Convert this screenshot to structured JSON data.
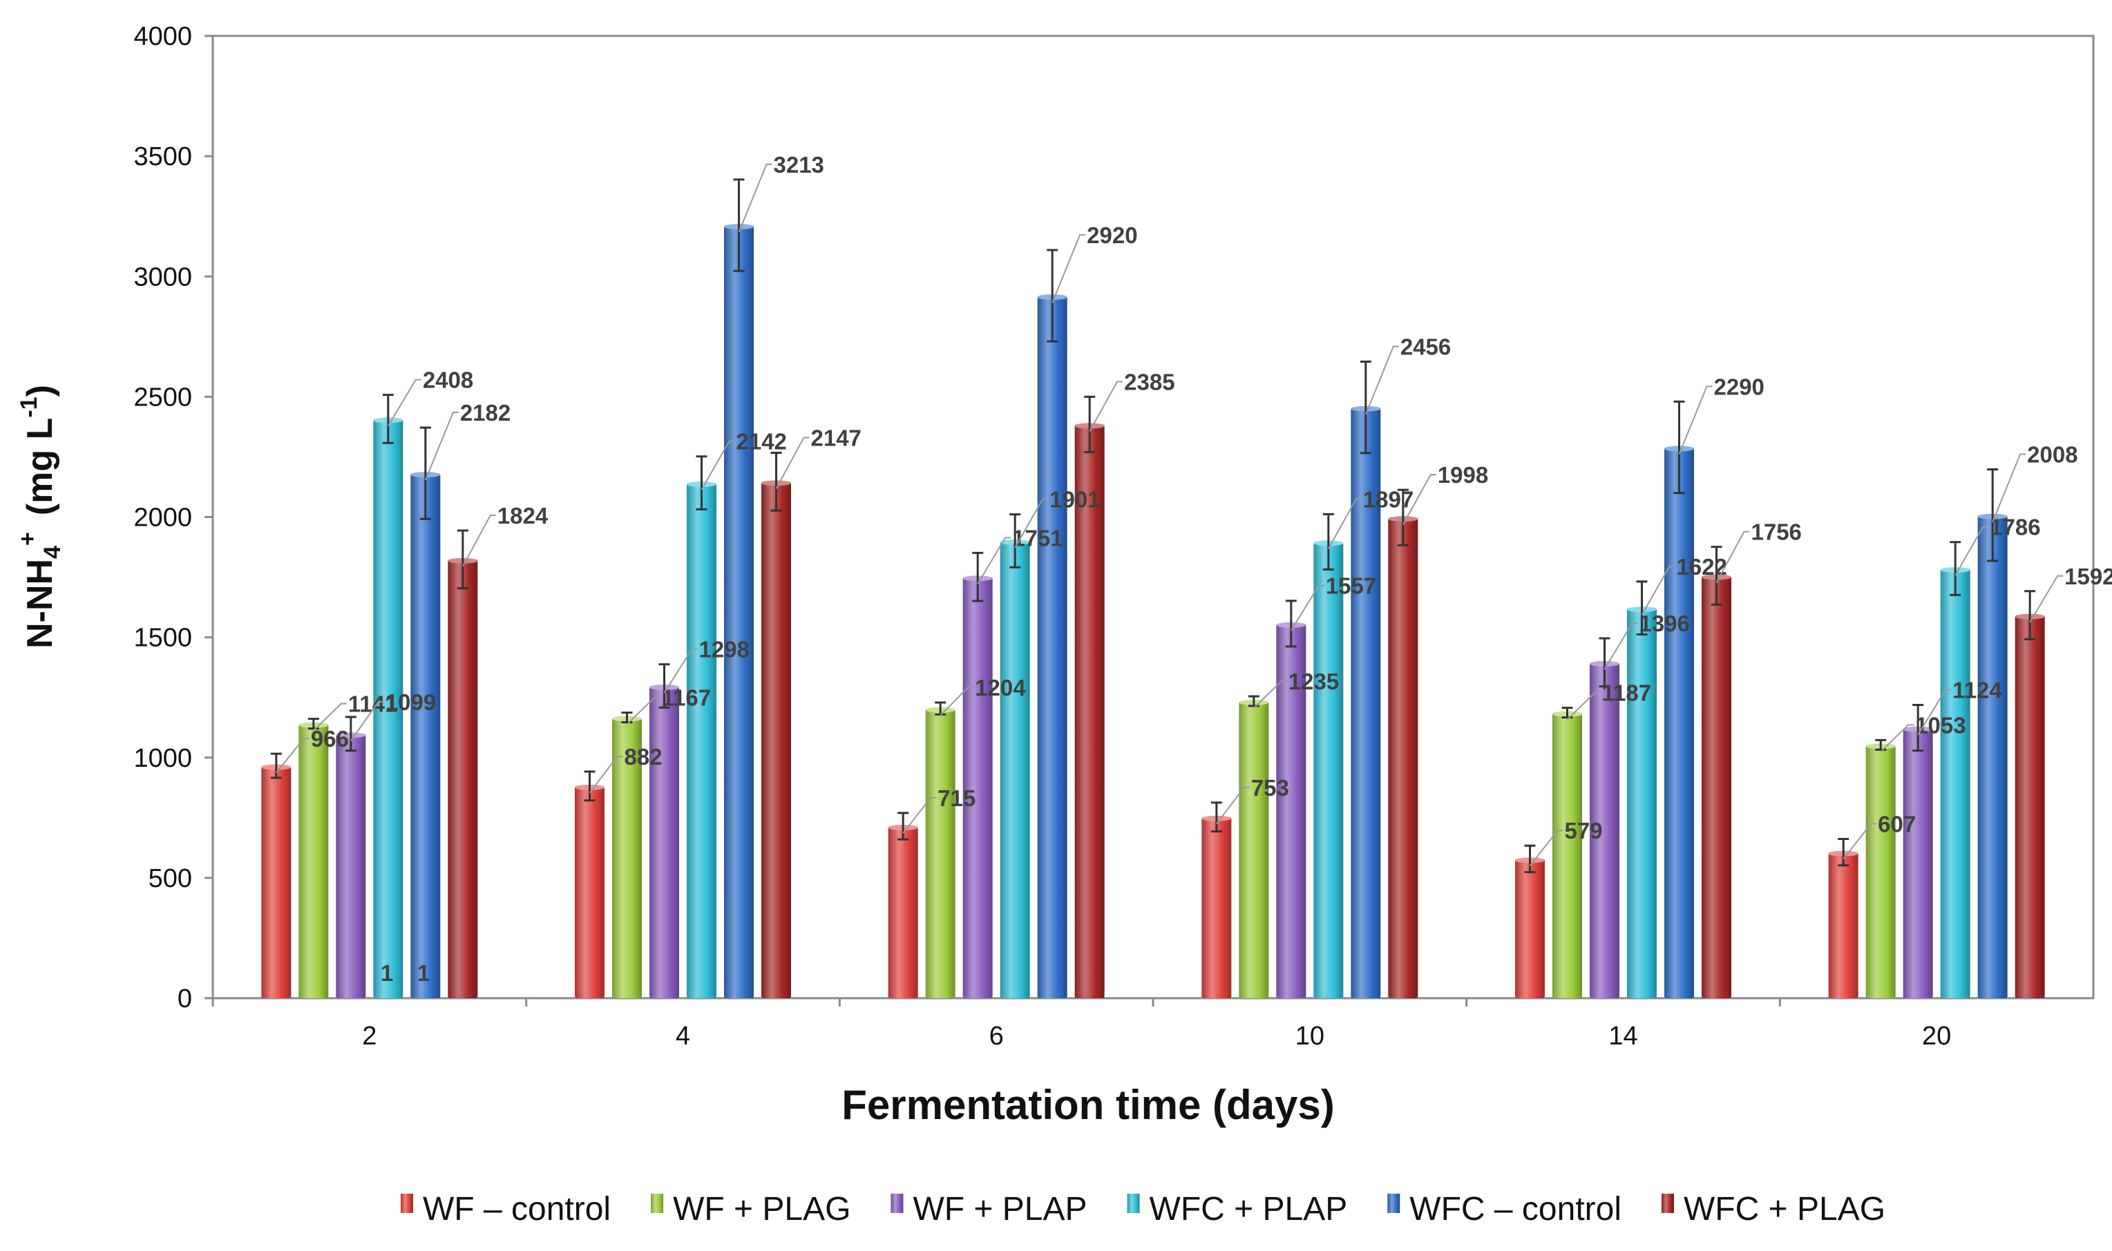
{
  "chart_data": {
    "type": "bar",
    "title": "",
    "xlabel": "Fermentation time (days)",
    "ylabel": {
      "main": "N-NH",
      "sub": "4",
      "sup": "+",
      "unit": "(mg L",
      "unit_sup": "-1",
      "close": ")"
    },
    "ylim": [
      0,
      4000
    ],
    "yticks": [
      "0",
      "500",
      "1000",
      "1500",
      "2000",
      "2500",
      "3000",
      "3500",
      "4000"
    ],
    "categories": [
      "2",
      "4",
      "6",
      "10",
      "14",
      "20"
    ],
    "legend_position": "bottom",
    "series": [
      {
        "name": "WF – control",
        "color": "#e0403c",
        "values": [
          966,
          882,
          715,
          753,
          579,
          607
        ],
        "labels": [
          "966",
          "882",
          "715",
          "753",
          "579",
          "607"
        ],
        "errors": [
          50,
          60,
          55,
          60,
          55,
          55
        ]
      },
      {
        "name": "WF + PLAG",
        "color": "#9ccc3c",
        "values": [
          1141,
          1167,
          1204,
          1235,
          1187,
          1053
        ],
        "labels": [
          "1141",
          "1167",
          "1204",
          "1235",
          "1187",
          "1053"
        ],
        "errors": [
          20,
          20,
          25,
          20,
          20,
          20
        ]
      },
      {
        "name": "WF + PLAP",
        "color": "#8a5ec0",
        "values": [
          1099,
          1298,
          1751,
          1557,
          1396,
          1124
        ],
        "labels": [
          "1099",
          "1298",
          "1751",
          "1557",
          "1396",
          "1124"
        ],
        "errors": [
          70,
          90,
          100,
          95,
          100,
          95
        ]
      },
      {
        "name": "WFC + PLAP",
        "color": "#2fbfd8",
        "values": [
          2408,
          2142,
          1901,
          1897,
          1622,
          1786
        ],
        "labels": [
          "2408",
          "2142",
          "1901",
          "1897",
          "1622",
          "1786"
        ],
        "errors": [
          100,
          110,
          110,
          115,
          110,
          110
        ]
      },
      {
        "name": "WFC – control",
        "color": "#2f6fc8",
        "values": [
          2182,
          3213,
          2920,
          2456,
          2290,
          2008
        ],
        "labels": [
          "2182",
          "3213",
          "2920",
          "2456",
          "2290",
          "2008"
        ],
        "errors": [
          190,
          190,
          190,
          190,
          190,
          190
        ]
      },
      {
        "name": "WFC + PLAG",
        "color": "#a82828",
        "values": [
          1824,
          2147,
          2385,
          1998,
          1756,
          1592
        ],
        "labels": [
          "1824",
          "2147",
          "2385",
          "1998",
          "1756",
          "1592"
        ],
        "errors": [
          120,
          120,
          115,
          115,
          120,
          100
        ]
      }
    ],
    "extra_labels": [
      "1",
      "1"
    ]
  }
}
